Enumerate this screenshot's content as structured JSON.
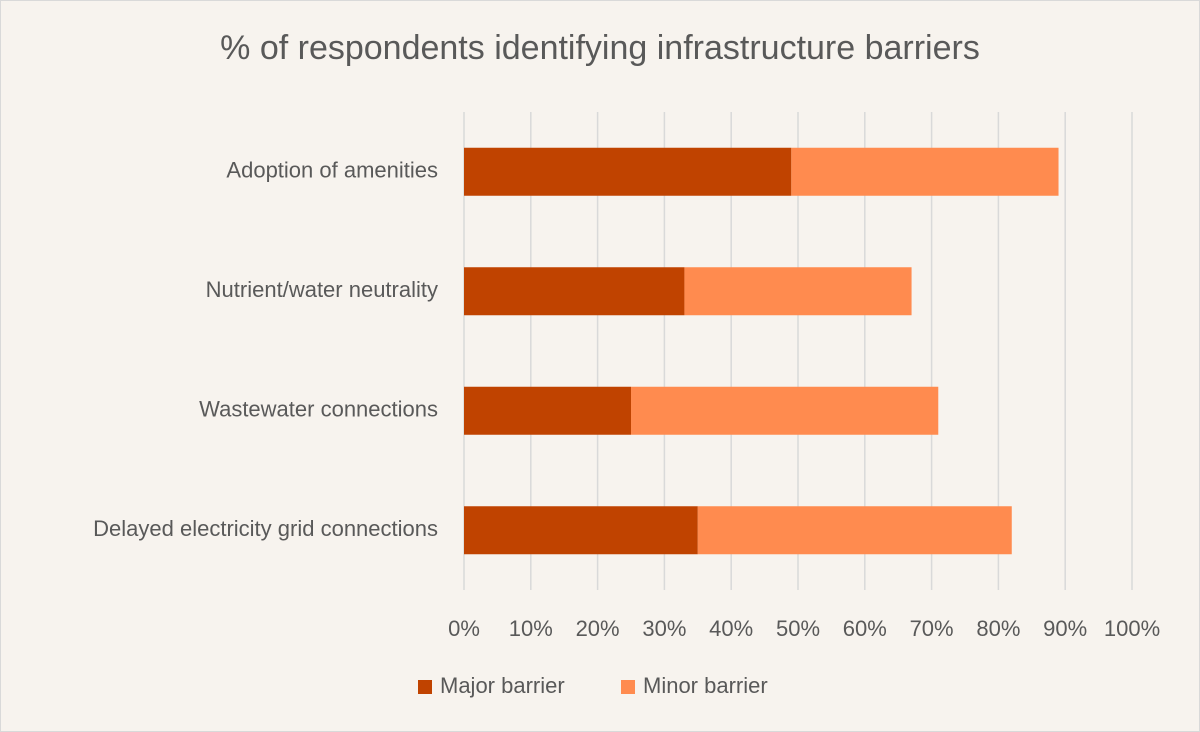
{
  "chart_data": {
    "type": "stacked-bar-horizontal",
    "title": "% of respondents identifying infrastructure barriers",
    "categories": [
      "Adoption of amenities",
      "Nutrient/water neutrality",
      "Wastewater connections",
      "Delayed electricity grid connections"
    ],
    "series": [
      {
        "name": "Major barrier",
        "color": "#c04300",
        "values": [
          49,
          33,
          25,
          35
        ]
      },
      {
        "name": "Minor barrier",
        "color": "#ff8b4f",
        "values": [
          40,
          34,
          46,
          47
        ]
      }
    ],
    "xlim": [
      0,
      100
    ],
    "xticks": [
      {
        "value": 0,
        "label": "0%"
      },
      {
        "value": 10,
        "label": "10%"
      },
      {
        "value": 20,
        "label": "20%"
      },
      {
        "value": 30,
        "label": "30%"
      },
      {
        "value": 40,
        "label": "40%"
      },
      {
        "value": 50,
        "label": "50%"
      },
      {
        "value": 60,
        "label": "60%"
      },
      {
        "value": 70,
        "label": "70%"
      },
      {
        "value": 80,
        "label": "80%"
      },
      {
        "value": 90,
        "label": "90%"
      },
      {
        "value": 100,
        "label": "100%"
      }
    ],
    "grid": true,
    "legend": "bottom"
  }
}
